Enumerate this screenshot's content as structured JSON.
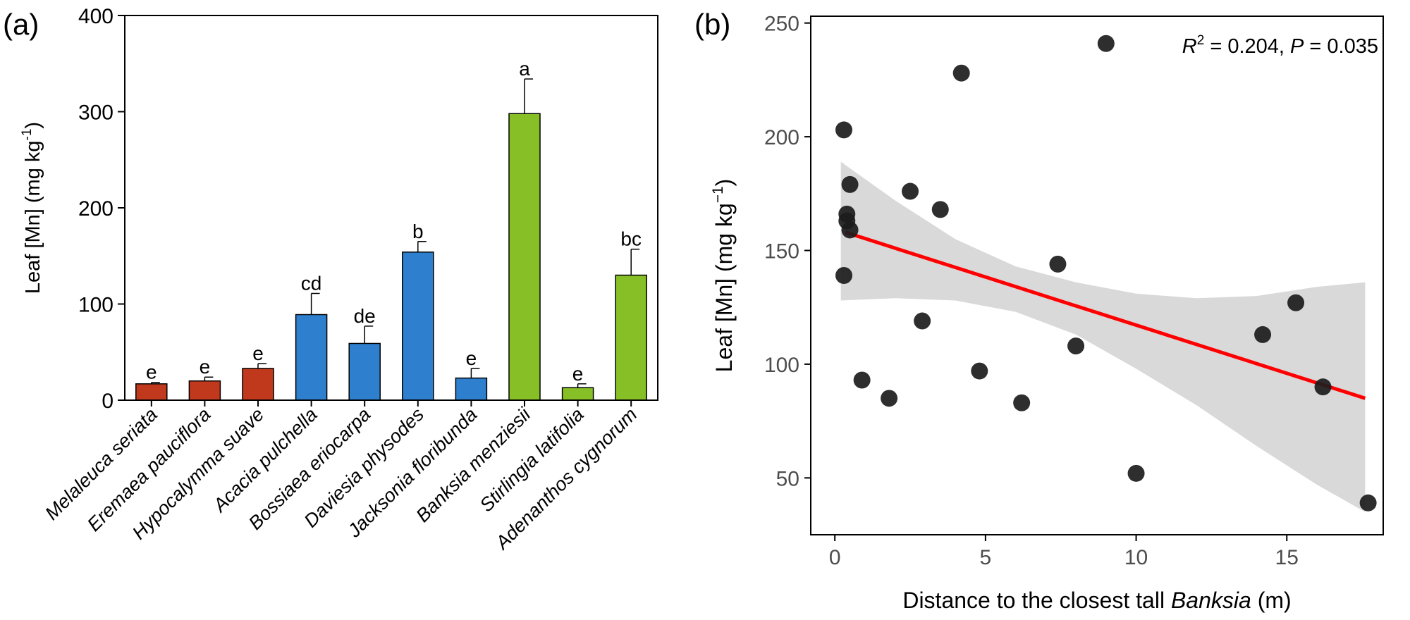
{
  "panels": {
    "a": {
      "label": "(a)"
    },
    "b": {
      "label": "(b)"
    }
  },
  "chart_data": [
    {
      "panel": "a",
      "type": "bar",
      "ylabel": {
        "main": "Leaf [Mn] (mg kg",
        "sup": "-1",
        "close": ")"
      },
      "xlabel": "",
      "ylim": [
        0,
        400
      ],
      "yticks": [
        "0",
        "100",
        "200",
        "300",
        "400"
      ],
      "categories": [
        "Melaleuca seriata",
        "Eremaea pauciflora",
        "Hypocalymma suave",
        "Acacia pulchella",
        "Bossiaea eriocarpa",
        "Daviesia physodes",
        "Jacksonia floribunda",
        "Banksia menziesii",
        "Stirlingia latifolia",
        "Adenanthos cygnorum"
      ],
      "values": [
        17,
        20,
        33,
        89,
        59,
        154,
        23,
        298,
        13,
        130
      ],
      "errors": [
        1.5,
        4,
        5,
        22,
        18,
        11,
        10,
        36,
        4,
        27
      ],
      "letters": [
        "e",
        "e",
        "e",
        "cd",
        "de",
        "b",
        "e",
        "a",
        "e",
        "bc"
      ],
      "bar_colors": [
        "#c0391d",
        "#c0391d",
        "#c0391d",
        "#2f7fcf",
        "#2f7fcf",
        "#2f7fcf",
        "#2f7fcf",
        "#86bf26",
        "#86bf26",
        "#86bf26"
      ],
      "grid": false,
      "legend": "none"
    },
    {
      "panel": "b",
      "type": "scatter",
      "xlabel": {
        "pre": "Distance to the closest tall ",
        "italic": "Banksia",
        "post": " (m)"
      },
      "ylabel": {
        "main": "Leaf [Mn] (mg kg",
        "sup": "−1",
        "close": ")"
      },
      "xlim": [
        -0.8,
        18.2
      ],
      "ylim": [
        25,
        253
      ],
      "xticks": [
        0,
        5,
        10,
        15
      ],
      "yticks": [
        50,
        100,
        150,
        200,
        250
      ],
      "annotation": {
        "r": "R",
        "r_sup": "2",
        "r_rest": " = 0.204, ",
        "p": "P",
        "p_rest": " = 0.035"
      },
      "points": [
        {
          "x": 9.0,
          "y": 241
        },
        {
          "x": 4.2,
          "y": 228
        },
        {
          "x": 0.3,
          "y": 203
        },
        {
          "x": 0.5,
          "y": 179
        },
        {
          "x": 2.5,
          "y": 176
        },
        {
          "x": 3.5,
          "y": 168
        },
        {
          "x": 0.4,
          "y": 166
        },
        {
          "x": 0.4,
          "y": 163
        },
        {
          "x": 0.5,
          "y": 159
        },
        {
          "x": 7.4,
          "y": 144
        },
        {
          "x": 0.3,
          "y": 139
        },
        {
          "x": 15.3,
          "y": 127
        },
        {
          "x": 2.9,
          "y": 119
        },
        {
          "x": 14.2,
          "y": 113
        },
        {
          "x": 8.0,
          "y": 108
        },
        {
          "x": 4.8,
          "y": 97
        },
        {
          "x": 0.9,
          "y": 93
        },
        {
          "x": 16.2,
          "y": 90
        },
        {
          "x": 1.8,
          "y": 85
        },
        {
          "x": 6.2,
          "y": 83
        },
        {
          "x": 10.0,
          "y": 52
        },
        {
          "x": 17.7,
          "y": 39
        }
      ],
      "fit_line": {
        "x": [
          0.35,
          17.6
        ],
        "y": [
          158,
          85
        ],
        "color": "#ff0000"
      },
      "confidence_band": {
        "x": [
          0.2,
          2,
          4,
          6,
          8,
          10,
          12,
          14,
          16,
          17.6
        ],
        "upper": [
          189,
          172,
          155,
          143,
          136,
          131,
          129,
          130,
          134,
          136
        ],
        "lower": [
          128,
          129,
          128,
          123,
          113,
          98,
          82,
          64,
          47,
          35
        ],
        "color": "#d9d9d9"
      },
      "point_color": "#1c1c1c",
      "grid": false,
      "legend": "none"
    }
  ]
}
